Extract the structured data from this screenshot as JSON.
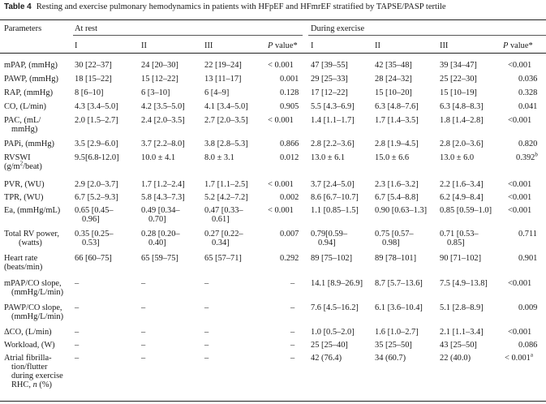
{
  "table": {
    "label": "Table 4",
    "caption": "Resting and exercise pulmonary hemodynamics in patients with HFpEF and HFmrEF stratified by TAPSE/PASP tertile",
    "header": {
      "parameters": "Parameters",
      "at_rest": "At rest",
      "during_exercise": "During exercise",
      "tertile_1": "I",
      "tertile_2": "II",
      "tertile_3": "III",
      "pvalue_label": "P",
      "pvalue_suffix": " value*"
    },
    "rows": [
      {
        "param": "mPAP, (mmHg)",
        "rest": [
          "30 [22–37]",
          "24 [20–30]",
          "22 [19–24]",
          "< 0.001"
        ],
        "ex": [
          "47 [39–55]",
          "42 [35–48]",
          "39 [34–47]",
          "<0.001"
        ]
      },
      {
        "param": "PAWP, (mmHg)",
        "rest": [
          "18 [15–22]",
          "15 [12–22]",
          "13 [11–17]",
          "0.001"
        ],
        "ex": [
          "29 [25–33]",
          "28 [24–32]",
          "25 [22–30]",
          "0.036"
        ]
      },
      {
        "param": "RAP, (mmHg)",
        "rest": [
          "8 [6–10]",
          "6 [3–10]",
          "6 [4–9]",
          "0.128"
        ],
        "ex": [
          "17 [12–22]",
          "15 [10–20]",
          "15 [10–19]",
          "0.328"
        ]
      },
      {
        "param": "CO, (L/min)",
        "rest": [
          "4.3 [3.4–5.0]",
          "4.2 [3.5–5.0]",
          "4.1 [3.4–5.0]",
          "0.905"
        ],
        "ex": [
          "5.5 [4.3–6.9]",
          "6.3 [4.8–7.6]",
          "6.3 [4.8–8.3]",
          "0.041"
        ]
      },
      {
        "param_l1": "PAC, (mL/",
        "param_l2": "mmHg)",
        "rest": [
          "2.0 [1.5–2.7]",
          "2.4 [2.0–3.5]",
          "2.7 [2.0–3.5]",
          "< 0.001"
        ],
        "ex": [
          "1.4 [1.1–1.7]",
          "1.7 [1.4–3.5]",
          "1.8 [1.4–2.8]",
          "<0.001"
        ]
      },
      {
        "param": "PAPi, (mmHg)",
        "rest": [
          "3.5 [2.9–6.0]",
          "3.7 [2.2–8.0]",
          "3.8 [2.8–5.3]",
          "0.866"
        ],
        "ex": [
          "2.8 [2.2–3.6]",
          "2.8 [1.9–4.5]",
          "2.8 [2.0–3.6]",
          "0.820"
        ]
      },
      {
        "param_l1": "RVSWI",
        "param_l2a": "(g/m",
        "param_l2sup": "2",
        "param_l2b": "/beat)",
        "rest": [
          "9.5[6.8-12.0]",
          "10.0 ± 4.1",
          "8.0 ± 3.1",
          "0.012"
        ],
        "ex": [
          "13.0 ± 6.1",
          "15.0 ± 6.6",
          "13.0 ± 6.0",
          "0.392"
        ],
        "ex_p_sup": "b"
      },
      {
        "param": "PVR, (WU)",
        "rest": [
          "2.9 [2.0–3.7]",
          "1.7 [1.2–2.4]",
          "1.7 [1.1–2.5]",
          "< 0.001"
        ],
        "ex": [
          "3.7 [2.4–5.0]",
          "2.3 [1.6–3.2]",
          "2.2 [1.6–3.4]",
          "<0.001"
        ]
      },
      {
        "param": "TPR, (WU)",
        "rest": [
          "6.7 [5.2–9.3]",
          "5.8 [4.3–7.3]",
          "5.2 [4.2–7.2]",
          "0.002"
        ],
        "ex": [
          "8.6 [6.7–10.7]",
          "6.7 [5.4–8.8]",
          "6.2 [4.9–8.4]",
          "<0.001"
        ]
      },
      {
        "param": "Ea, (mmHg/mL)",
        "rest_l1": [
          "0.65 [0.45–",
          "0.49 [0.34–",
          "0.47 [0.33–"
        ],
        "rest_l2": [
          "0.96]",
          "0.70]",
          "0.61]"
        ],
        "rest_p": "< 0.001",
        "ex": [
          "1.1 [0.85–1.5]",
          "0.90 [0.63–1.3]",
          "0.85 [0.59–1.0]",
          "<0.001"
        ]
      },
      {
        "param_l1": "Total RV power,",
        "param_l2": "(watts)",
        "rest_l1": [
          "0.35 [0.25–",
          "0.28 [0.20–",
          "0.27 [0.22–"
        ],
        "rest_l2": [
          "0.53]",
          "0.40]",
          "0.34]"
        ],
        "rest_p": "0.007",
        "ex_l1": [
          "0.79[0.59–",
          "0.75 [0.57–",
          "0.71 [0.53–"
        ],
        "ex_l2": [
          "0.94]",
          "0.98]",
          "0.85]"
        ],
        "ex_p": "0.711"
      },
      {
        "param_l1": "Heart rate",
        "param_l2": "(beats/min)",
        "rest": [
          "66 [60–75]",
          "65 [59–75]",
          "65 [57–71]",
          "0.292"
        ],
        "ex": [
          "89 [75–102]",
          "89 [78–101]",
          "90 [71–102]",
          "0.901"
        ]
      },
      {
        "param_l1": "mPAP/CO slope,",
        "param_l2": "(mmHg/L/min)",
        "rest": [
          "–",
          "–",
          "–",
          "–"
        ],
        "ex": [
          "14.1 [8.9–26.9]",
          "8.7 [5.7–13.6]",
          "7.5 [4.9–13.8]",
          "<0.001"
        ]
      },
      {
        "param_l1": "PAWP/CO slope,",
        "param_l2": "(mmHg/L/min)",
        "rest": [
          "–",
          "–",
          "–",
          "–"
        ],
        "ex": [
          "7.6 [4.5–16.2]",
          "6.1 [3.6–10.4]",
          "5.1 [2.8–8.9]",
          "0.009"
        ]
      },
      {
        "param": "ΔCO, (L/min)",
        "rest": [
          "–",
          "–",
          "–",
          "–"
        ],
        "ex": [
          "1.0 [0.5–2.0]",
          "1.6 [1.0–2.7]",
          "2.1 [1.1–3.4]",
          "<0.001"
        ]
      },
      {
        "param": "Workload, (W)",
        "rest": [
          "–",
          "–",
          "–",
          "–"
        ],
        "ex": [
          "25 [25–40]",
          "35 [25–50]",
          "43 [25–50]",
          "0.086"
        ]
      },
      {
        "param_l1": "Atrial fibrilla-",
        "param_l2": "tion/flutter",
        "param_l3": "during exercise",
        "param_l4a": "RHC, ",
        "param_l4i": "n",
        "param_l4b": " (%)",
        "rest": [
          "–",
          "–",
          "–",
          "–"
        ],
        "ex": [
          "42 (76.4)",
          "34 (60.7)",
          "22 (40.0)",
          "< 0.001"
        ],
        "ex_p_sup": "a"
      }
    ]
  }
}
